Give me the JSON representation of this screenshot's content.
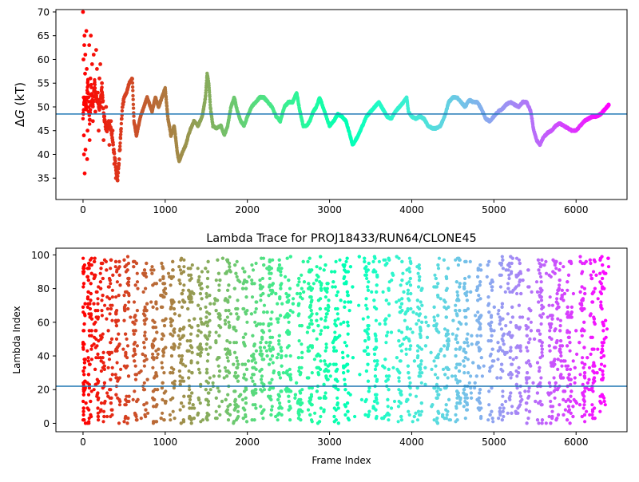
{
  "chart_data": [
    {
      "type": "scatter",
      "title": "",
      "xlabel": "",
      "ylabel": "ΔG (kT)",
      "ylabel_math_symbol": "Δ",
      "ylabel_math_var": "G",
      "ylabel_rest": " (kT)",
      "xlim": [
        -330,
        6620
      ],
      "ylim": [
        30.5,
        70.5
      ],
      "xticks": [
        0,
        1000,
        2000,
        3000,
        4000,
        5000,
        6000
      ],
      "xtick_labels": [
        "0",
        "1000",
        "2000",
        "3000",
        "4000",
        "5000",
        "6000"
      ],
      "yticks": [
        35,
        40,
        45,
        50,
        55,
        60,
        65,
        70
      ],
      "ytick_labels": [
        "35",
        "40",
        "45",
        "50",
        "55",
        "60",
        "65",
        "70"
      ],
      "hline": 48.5,
      "hline_color": "#1f77b4",
      "colormap": "rainbow",
      "x_range": [
        0,
        6400
      ],
      "series_trace_keypoints": [
        [
          0,
          48
        ],
        [
          20,
          52
        ],
        [
          40,
          50
        ],
        [
          60,
          56
        ],
        [
          80,
          46
        ],
        [
          100,
          54
        ],
        [
          120,
          50
        ],
        [
          140,
          55
        ],
        [
          160,
          52
        ],
        [
          200,
          50
        ],
        [
          230,
          54
        ],
        [
          260,
          47
        ],
        [
          290,
          45
        ],
        [
          320,
          47
        ],
        [
          350,
          44
        ],
        [
          380,
          40
        ],
        [
          400,
          37
        ],
        [
          420,
          35
        ],
        [
          440,
          39
        ],
        [
          460,
          45
        ],
        [
          480,
          50
        ],
        [
          500,
          52
        ],
        [
          530,
          53
        ],
        [
          560,
          55
        ],
        [
          600,
          56
        ],
        [
          620,
          47
        ],
        [
          650,
          44
        ],
        [
          700,
          48
        ],
        [
          740,
          50
        ],
        [
          780,
          52
        ],
        [
          800,
          51
        ],
        [
          840,
          49
        ],
        [
          880,
          52
        ],
        [
          920,
          50
        ],
        [
          960,
          52
        ],
        [
          1000,
          54
        ],
        [
          1030,
          48
        ],
        [
          1070,
          44
        ],
        [
          1110,
          46
        ],
        [
          1150,
          40
        ],
        [
          1170,
          38.5
        ],
        [
          1200,
          40
        ],
        [
          1250,
          42
        ],
        [
          1300,
          45
        ],
        [
          1350,
          47
        ],
        [
          1400,
          46
        ],
        [
          1450,
          48
        ],
        [
          1490,
          52
        ],
        [
          1510,
          57
        ],
        [
          1530,
          55
        ],
        [
          1550,
          50
        ],
        [
          1580,
          46
        ],
        [
          1620,
          45.5
        ],
        [
          1680,
          46
        ],
        [
          1720,
          44
        ],
        [
          1760,
          46
        ],
        [
          1800,
          50
        ],
        [
          1840,
          52
        ],
        [
          1880,
          49
        ],
        [
          1920,
          47
        ],
        [
          1960,
          46
        ],
        [
          2000,
          48
        ],
        [
          2050,
          50
        ],
        [
          2100,
          51
        ],
        [
          2150,
          52
        ],
        [
          2200,
          52
        ],
        [
          2250,
          51
        ],
        [
          2300,
          50
        ],
        [
          2350,
          48
        ],
        [
          2400,
          47
        ],
        [
          2450,
          50
        ],
        [
          2500,
          51
        ],
        [
          2550,
          51
        ],
        [
          2600,
          53
        ],
        [
          2640,
          49
        ],
        [
          2680,
          46
        ],
        [
          2720,
          46
        ],
        [
          2760,
          47
        ],
        [
          2800,
          49
        ],
        [
          2840,
          50
        ],
        [
          2880,
          52
        ],
        [
          2920,
          50
        ],
        [
          2960,
          48
        ],
        [
          3000,
          46
        ],
        [
          3050,
          47
        ],
        [
          3100,
          48.5
        ],
        [
          3150,
          48
        ],
        [
          3200,
          47
        ],
        [
          3250,
          44
        ],
        [
          3280,
          42
        ],
        [
          3300,
          42.5
        ],
        [
          3350,
          44
        ],
        [
          3400,
          46
        ],
        [
          3450,
          48
        ],
        [
          3500,
          49
        ],
        [
          3550,
          50
        ],
        [
          3600,
          51
        ],
        [
          3650,
          49.5
        ],
        [
          3700,
          48
        ],
        [
          3750,
          47.5
        ],
        [
          3800,
          49
        ],
        [
          3850,
          50
        ],
        [
          3900,
          51
        ],
        [
          3940,
          52
        ],
        [
          3960,
          49
        ],
        [
          4000,
          48
        ],
        [
          4050,
          47.5
        ],
        [
          4100,
          48
        ],
        [
          4150,
          47.5
        ],
        [
          4200,
          46
        ],
        [
          4250,
          45.5
        ],
        [
          4300,
          45.5
        ],
        [
          4350,
          46
        ],
        [
          4400,
          48
        ],
        [
          4450,
          51
        ],
        [
          4500,
          52
        ],
        [
          4550,
          52
        ],
        [
          4600,
          51
        ],
        [
          4650,
          50
        ],
        [
          4700,
          51.5
        ],
        [
          4750,
          51
        ],
        [
          4800,
          51
        ],
        [
          4850,
          49.5
        ],
        [
          4900,
          47.5
        ],
        [
          4950,
          47
        ],
        [
          5000,
          48
        ],
        [
          5050,
          49
        ],
        [
          5100,
          49.5
        ],
        [
          5150,
          50.5
        ],
        [
          5200,
          51
        ],
        [
          5250,
          50.5
        ],
        [
          5300,
          50
        ],
        [
          5350,
          51
        ],
        [
          5400,
          51
        ],
        [
          5450,
          49
        ],
        [
          5480,
          45.5
        ],
        [
          5520,
          43
        ],
        [
          5560,
          42
        ],
        [
          5600,
          43.5
        ],
        [
          5650,
          44.5
        ],
        [
          5700,
          45
        ],
        [
          5750,
          46
        ],
        [
          5800,
          46.5
        ],
        [
          5850,
          46
        ],
        [
          5900,
          45.5
        ],
        [
          5950,
          45
        ],
        [
          6000,
          45
        ],
        [
          6050,
          46
        ],
        [
          6100,
          47
        ],
        [
          6150,
          47.5
        ],
        [
          6200,
          48
        ],
        [
          6250,
          48
        ],
        [
          6300,
          48.5
        ],
        [
          6350,
          49.5
        ],
        [
          6400,
          50.5
        ]
      ],
      "series_early_outliers": [
        [
          0,
          70
        ],
        [
          5,
          60
        ],
        [
          8,
          52
        ],
        [
          10,
          44
        ],
        [
          12,
          40
        ],
        [
          15,
          63
        ],
        [
          18,
          65
        ],
        [
          20,
          36
        ],
        [
          25,
          57
        ],
        [
          28,
          61
        ],
        [
          30,
          41
        ],
        [
          35,
          50
        ],
        [
          40,
          66
        ],
        [
          45,
          58
        ],
        [
          50,
          39
        ],
        [
          55,
          45
        ],
        [
          60,
          53
        ],
        [
          70,
          49
        ],
        [
          75,
          63
        ],
        [
          80,
          43
        ],
        [
          90,
          56
        ],
        [
          95,
          65
        ],
        [
          100,
          51
        ],
        [
          110,
          59
        ],
        [
          120,
          47
        ],
        [
          130,
          61
        ],
        [
          140,
          54
        ],
        [
          150,
          49
        ],
        [
          160,
          62
        ],
        [
          170,
          58
        ],
        [
          180,
          53
        ],
        [
          190,
          45
        ],
        [
          200,
          56
        ],
        [
          210,
          59
        ],
        [
          220,
          50
        ],
        [
          230,
          55
        ],
        [
          250,
          43
        ],
        [
          260,
          48
        ],
        [
          280,
          50
        ],
        [
          300,
          46
        ],
        [
          320,
          42
        ],
        [
          340,
          47
        ],
        [
          360,
          45
        ],
        [
          380,
          38
        ],
        [
          400,
          35
        ],
        [
          410,
          36
        ],
        [
          420,
          34.5
        ],
        [
          430,
          37
        ],
        [
          450,
          41
        ]
      ]
    },
    {
      "type": "scatter",
      "title": "Lambda Trace for PROJ18433/RUN64/CLONE45",
      "xlabel": "Frame Index",
      "ylabel": "Lambda Index",
      "xlim": [
        -330,
        6620
      ],
      "ylim": [
        -5,
        104
      ],
      "xticks": [
        0,
        1000,
        2000,
        3000,
        4000,
        5000,
        6000
      ],
      "xtick_labels": [
        "0",
        "1000",
        "2000",
        "3000",
        "4000",
        "5000",
        "6000"
      ],
      "yticks": [
        0,
        20,
        40,
        60,
        80,
        100
      ],
      "ytick_labels": [
        "0",
        "20",
        "40",
        "60",
        "80",
        "100"
      ],
      "hline": 22,
      "hline_color": "#1f77b4",
      "colormap": "rainbow",
      "x_range": [
        0,
        6400
      ],
      "y_range": [
        0,
        99
      ],
      "band_centers": [
        0,
        80,
        160,
        240,
        330,
        420,
        530,
        640,
        760,
        870,
        980,
        1090,
        1200,
        1300,
        1420,
        1520,
        1640,
        1760,
        1860,
        1970,
        2080,
        2180,
        2290,
        2390,
        2500,
        2640,
        2760,
        2870,
        2960,
        3080,
        3200,
        3450,
        3560,
        3700,
        3860,
        3960,
        4100,
        4300,
        4420,
        4560,
        4660,
        4820,
        4960,
        5100,
        5200,
        5300,
        5420,
        5560,
        5700,
        5760,
        5820,
        5920,
        6080,
        6200,
        6320
      ]
    }
  ]
}
